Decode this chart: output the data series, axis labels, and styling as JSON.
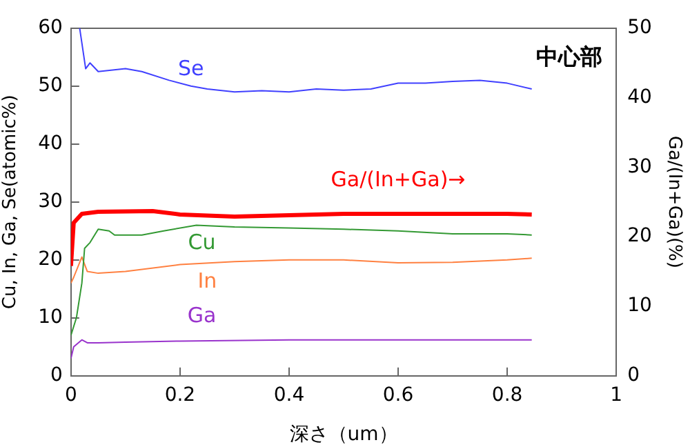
{
  "chart_data": {
    "type": "line",
    "xlabel": "深さ（um）",
    "ylabel": "Cu, In, Ga, Se(atomic%)",
    "y2label": "Ga/(In+Ga)(%)",
    "annotations": [
      "中心部"
    ],
    "xlim": [
      0,
      1
    ],
    "xticks": [
      0,
      0.2,
      0.4,
      0.6,
      0.8,
      1
    ],
    "ylim": [
      0,
      60
    ],
    "yticks": [
      0,
      10,
      20,
      30,
      40,
      50,
      60
    ],
    "y2lim": [
      0,
      50
    ],
    "y2ticks": [
      0,
      10,
      20,
      30,
      40,
      50
    ],
    "grid": false,
    "legend": false,
    "marker": "none",
    "line_style": "solid",
    "series": [
      {
        "name": "Se",
        "color": "#4040ff",
        "x": [
          0.016,
          0.027,
          0.035,
          0.05,
          0.1,
          0.13,
          0.18,
          0.22,
          0.25,
          0.3,
          0.35,
          0.4,
          0.45,
          0.5,
          0.55,
          0.6,
          0.65,
          0.7,
          0.75,
          0.8,
          0.845
        ],
        "values": [
          60,
          53,
          54,
          52.5,
          53,
          52.5,
          51,
          50,
          49.5,
          49,
          49.2,
          49,
          49.5,
          49.3,
          49.5,
          50.5,
          50.5,
          50.8,
          51,
          50.5,
          49.5
        ]
      },
      {
        "name": "Cu",
        "color": "#339933",
        "x": [
          0,
          0.01,
          0.02,
          0.025,
          0.035,
          0.05,
          0.07,
          0.08,
          0.13,
          0.17,
          0.23,
          0.3,
          0.4,
          0.5,
          0.6,
          0.7,
          0.8,
          0.845
        ],
        "values": [
          7,
          10,
          16,
          22,
          23,
          25.3,
          25,
          24.3,
          24.3,
          25,
          26,
          25.7,
          25.5,
          25.3,
          25,
          24.5,
          24.5,
          24.3
        ]
      },
      {
        "name": "In",
        "color": "#ff8040",
        "x": [
          0,
          0.005,
          0.02,
          0.03,
          0.05,
          0.1,
          0.2,
          0.3,
          0.4,
          0.5,
          0.6,
          0.7,
          0.8,
          0.845
        ],
        "values": [
          16,
          17,
          20.5,
          18,
          17.7,
          18,
          19.2,
          19.7,
          20,
          20,
          19.5,
          19.6,
          20,
          20.3
        ]
      },
      {
        "name": "Ga",
        "color": "#9933cc",
        "x": [
          0,
          0.005,
          0.02,
          0.03,
          0.05,
          0.1,
          0.2,
          0.4,
          0.6,
          0.845
        ],
        "values": [
          3,
          5,
          6.2,
          5.7,
          5.7,
          5.8,
          6,
          6.2,
          6.2,
          6.2
        ]
      },
      {
        "name": "Ga/(In+Ga)→",
        "color": "#ff0000",
        "axis": "y2",
        "x": [
          0,
          0.005,
          0.02,
          0.05,
          0.15,
          0.2,
          0.3,
          0.5,
          0.8,
          0.845
        ],
        "values": [
          15.8,
          22,
          23.3,
          23.6,
          23.7,
          23.2,
          22.9,
          23.3,
          23.3,
          23.2
        ]
      }
    ]
  }
}
